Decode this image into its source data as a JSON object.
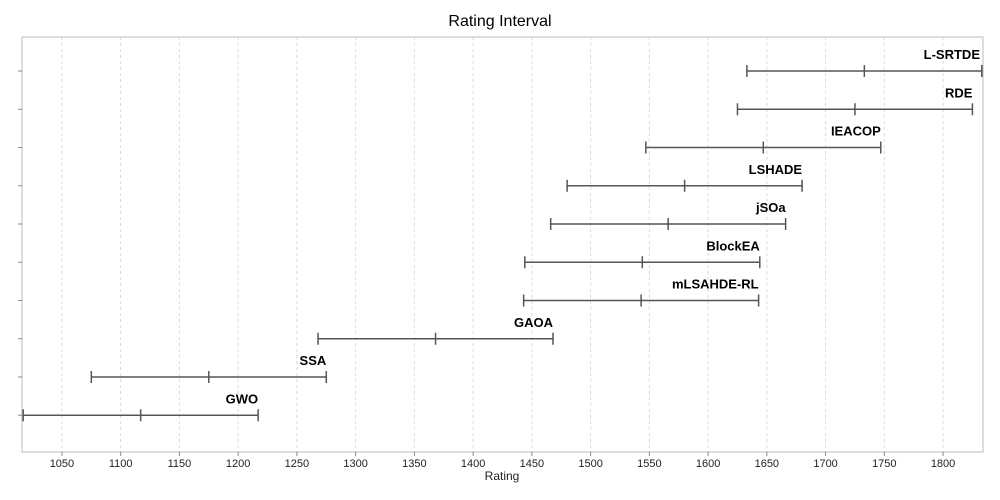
{
  "chart_data": {
    "type": "interval",
    "title": "Rating Interval",
    "xlabel": "Rating",
    "ylabel": "",
    "xlim": [
      1016,
      1834
    ],
    "xticks": [
      1050,
      1100,
      1150,
      1200,
      1250,
      1300,
      1350,
      1400,
      1450,
      1500,
      1550,
      1600,
      1650,
      1700,
      1750,
      1800
    ],
    "grid": "vertical-dashed",
    "colors": {
      "interval": "#555555",
      "grid": "#d9d9d9",
      "frame": "#bbbbbb"
    },
    "series": [
      {
        "name": "L-SRTDE",
        "low": 1633,
        "mid": 1733,
        "high": 1833
      },
      {
        "name": "RDE",
        "low": 1625,
        "mid": 1725,
        "high": 1825
      },
      {
        "name": "IEACOP",
        "low": 1547,
        "mid": 1647,
        "high": 1747
      },
      {
        "name": "LSHADE",
        "low": 1480,
        "mid": 1580,
        "high": 1680
      },
      {
        "name": "jSOa",
        "low": 1466,
        "mid": 1566,
        "high": 1666
      },
      {
        "name": "BlockEA",
        "low": 1444,
        "mid": 1544,
        "high": 1644
      },
      {
        "name": "mLSAHDE-RL",
        "low": 1443,
        "mid": 1543,
        "high": 1643
      },
      {
        "name": "GAOA",
        "low": 1268,
        "mid": 1368,
        "high": 1468
      },
      {
        "name": "SSA",
        "low": 1075,
        "mid": 1175,
        "high": 1275
      },
      {
        "name": "GWO",
        "low": 1017,
        "mid": 1117,
        "high": 1217
      }
    ]
  }
}
